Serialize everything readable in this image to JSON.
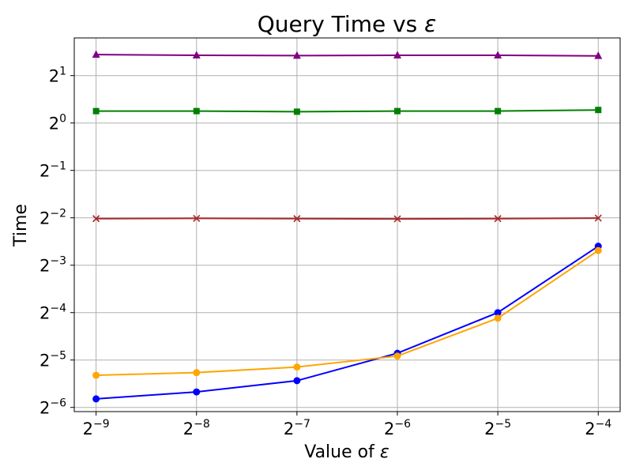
{
  "chart_data": {
    "type": "line",
    "title_text": "Query Time vs ",
    "title_symbol": "ε",
    "xlabel_text": "Value of ",
    "xlabel_symbol": "ε",
    "ylabel": "Time",
    "x_scale": "log2",
    "y_scale": "log2",
    "x_ticks": [
      {
        "base": "2",
        "exp": "−9",
        "value": 0.001953125
      },
      {
        "base": "2",
        "exp": "−8",
        "value": 0.00390625
      },
      {
        "base": "2",
        "exp": "−7",
        "value": 0.0078125
      },
      {
        "base": "2",
        "exp": "−6",
        "value": 0.015625
      },
      {
        "base": "2",
        "exp": "−5",
        "value": 0.03125
      },
      {
        "base": "2",
        "exp": "−4",
        "value": 0.0625
      }
    ],
    "y_ticks": [
      {
        "base": "2",
        "exp": "1",
        "value": 2
      },
      {
        "base": "2",
        "exp": "0",
        "value": 1
      },
      {
        "base": "2",
        "exp": "−1",
        "value": 0.5
      },
      {
        "base": "2",
        "exp": "−2",
        "value": 0.25
      },
      {
        "base": "2",
        "exp": "−3",
        "value": 0.125
      },
      {
        "base": "2",
        "exp": "−4",
        "value": 0.0625
      },
      {
        "base": "2",
        "exp": "−5",
        "value": 0.03125
      },
      {
        "base": "2",
        "exp": "−6",
        "value": 0.015625
      }
    ],
    "xlim": [
      0.00168,
      0.0727
    ],
    "ylim": [
      0.0147,
      3.47
    ],
    "grid": true,
    "legend": "none",
    "x": [
      0.001953125,
      0.00390625,
      0.0078125,
      0.015625,
      0.03125,
      0.0625
    ],
    "series": [
      {
        "color": "#800080",
        "marker": "triangle",
        "values": [
          2.72,
          2.69,
          2.68,
          2.69,
          2.69,
          2.67
        ]
      },
      {
        "color": "#008000",
        "marker": "square",
        "values": [
          1.19,
          1.19,
          1.18,
          1.19,
          1.19,
          1.21
        ]
      },
      {
        "color": "#a52a2a",
        "marker": "x",
        "values": [
          0.247,
          0.248,
          0.247,
          0.246,
          0.247,
          0.249
        ]
      },
      {
        "color": "#0000ff",
        "marker": "circle",
        "values": [
          0.0177,
          0.0196,
          0.0231,
          0.0345,
          0.0625,
          0.165
        ]
      },
      {
        "color": "#ffa500",
        "marker": "circle",
        "values": [
          0.025,
          0.026,
          0.0282,
          0.0331,
          0.0576,
          0.155
        ]
      }
    ]
  }
}
